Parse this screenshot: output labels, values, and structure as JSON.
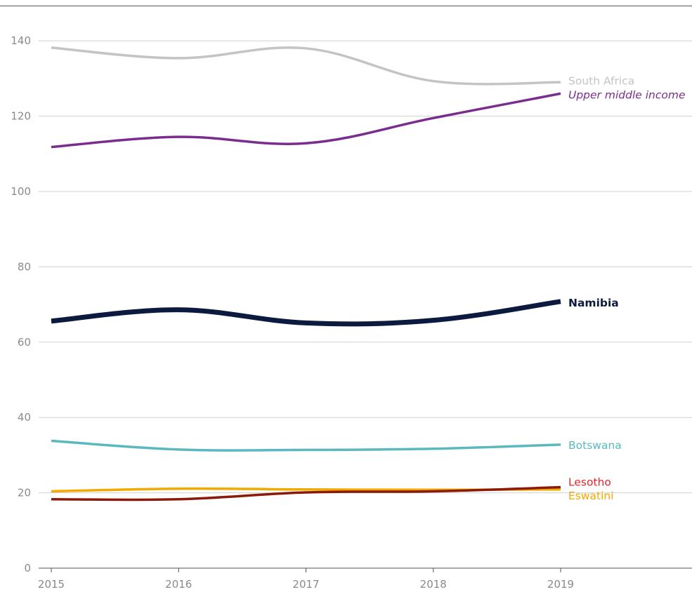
{
  "chart_data": {
    "type": "line",
    "x": [
      2015,
      2016,
      2017,
      2018,
      2019
    ],
    "xticks": [
      "2015",
      "2016",
      "2017",
      "2018",
      "2019"
    ],
    "yticks": [
      0,
      20,
      40,
      60,
      80,
      100,
      120,
      140
    ],
    "ylim": [
      0,
      150
    ],
    "xlim": [
      2015,
      2020
    ],
    "grid": "horizontal",
    "legend": "direct labels at line ends",
    "series": [
      {
        "name": "South Africa",
        "key": "south-africa",
        "color": "#c4c4c4",
        "width": "medium",
        "style": "normal",
        "values": [
          138.2,
          135.4,
          138.0,
          129.3,
          129.0
        ]
      },
      {
        "name": "Upper middle income",
        "key": "upper-middle-income",
        "color": "#7b2d8e",
        "width": "medium",
        "style": "italic",
        "values": [
          111.8,
          114.5,
          112.8,
          119.5,
          126.0
        ]
      },
      {
        "name": "Namibia",
        "key": "namibia",
        "color": "#0d1a3f",
        "width": "thick",
        "style": "bold",
        "values": [
          65.6,
          68.6,
          65.1,
          65.8,
          70.8
        ]
      },
      {
        "name": "Botswana",
        "key": "botswana",
        "color": "#5bb8be",
        "width": "medium",
        "style": "normal",
        "values": [
          33.8,
          31.5,
          31.4,
          31.7,
          32.8
        ]
      },
      {
        "name": "Eswatini",
        "key": "eswatini",
        "color": "#f2a900",
        "width": "medium",
        "style": "normal",
        "values": [
          20.4,
          21.1,
          20.9,
          20.8,
          20.9
        ]
      },
      {
        "name": "Lesotho",
        "key": "lesotho",
        "color": "#e8232a",
        "lineColor": "#8b1a0a",
        "width": "medium",
        "style": "normal",
        "values": [
          18.3,
          18.3,
          20.1,
          20.4,
          21.5
        ]
      }
    ]
  }
}
